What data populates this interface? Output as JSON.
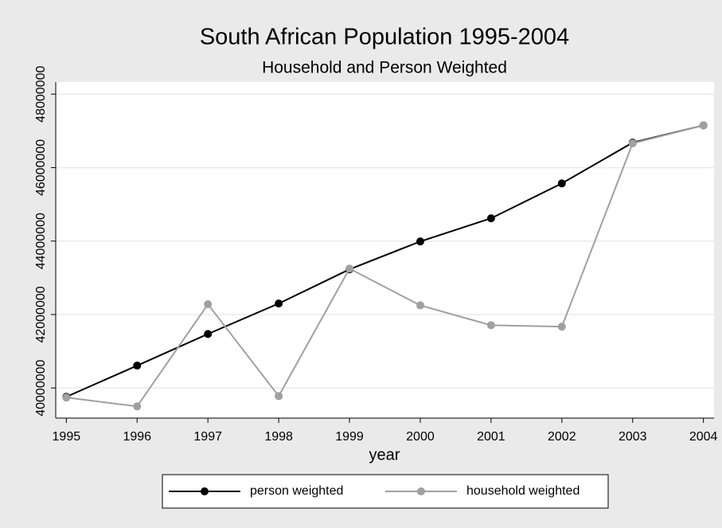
{
  "chart_data": {
    "type": "line",
    "title": "South African Population 1995-2004",
    "subtitle": "Household and Person Weighted",
    "xlabel": "year",
    "x": [
      1995,
      1996,
      1997,
      1998,
      1999,
      2000,
      2001,
      2002,
      2003,
      2004
    ],
    "series": [
      {
        "name": "person weighted",
        "color": "#000000",
        "values": [
          39760000,
          40610000,
          41470000,
          42300000,
          43230000,
          43990000,
          44620000,
          45570000,
          46680000,
          47150000
        ]
      },
      {
        "name": "household weighted",
        "color": "#a0a0a0",
        "values": [
          39740000,
          39500000,
          42280000,
          39780000,
          43250000,
          42250000,
          41710000,
          41670000,
          46660000,
          47150000
        ]
      }
    ],
    "xlim": [
      1994.85,
      2004.15
    ],
    "xticks": [
      1995,
      1996,
      1997,
      1998,
      1999,
      2000,
      2001,
      2002,
      2003,
      2004
    ],
    "ylim": [
      39180000,
      48330000
    ],
    "yticks": [
      40000000,
      42000000,
      44000000,
      46000000,
      48000000
    ],
    "grid": true,
    "legend": "bottom"
  }
}
